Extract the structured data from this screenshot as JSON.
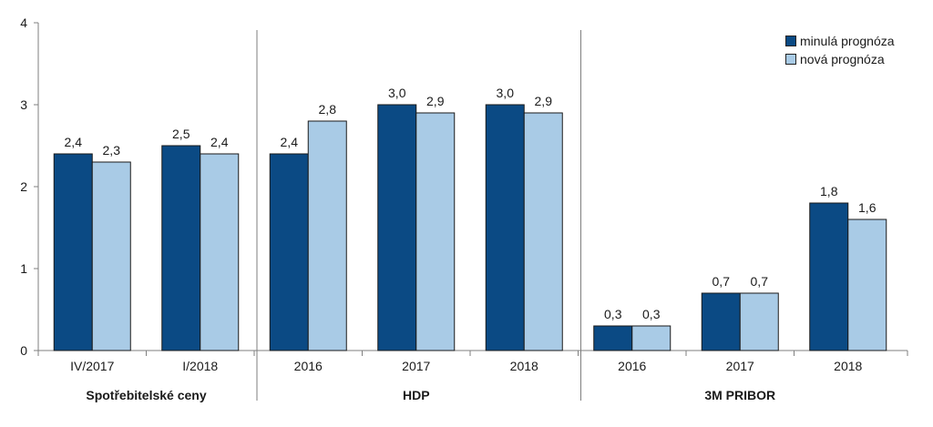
{
  "chart_data": {
    "type": "bar",
    "ylim": [
      0,
      4
    ],
    "yticks": [
      "0",
      "1",
      "2",
      "3",
      "4"
    ],
    "grid": false,
    "legend_position": "top-right",
    "colors": {
      "minula": "#0b4a84",
      "nova": "#a9cbe6"
    },
    "series": [
      {
        "name": "minulá prognóza"
      },
      {
        "name": "nová prognóza"
      }
    ],
    "groups": [
      {
        "label": "Spotřebitelské ceny",
        "categories": [
          {
            "label": "IV/2017",
            "values": [
              2.4,
              2.3
            ],
            "value_labels": [
              "2,4",
              "2,3"
            ]
          },
          {
            "label": "I/2018",
            "values": [
              2.5,
              2.4
            ],
            "value_labels": [
              "2,5",
              "2,4"
            ]
          }
        ]
      },
      {
        "label": "HDP",
        "categories": [
          {
            "label": "2016",
            "values": [
              2.4,
              2.8
            ],
            "value_labels": [
              "2,4",
              "2,8"
            ]
          },
          {
            "label": "2017",
            "values": [
              3.0,
              2.9
            ],
            "value_labels": [
              "3,0",
              "2,9"
            ]
          },
          {
            "label": "2018",
            "values": [
              3.0,
              2.9
            ],
            "value_labels": [
              "3,0",
              "2,9"
            ]
          }
        ]
      },
      {
        "label": "3M PRIBOR",
        "categories": [
          {
            "label": "2016",
            "values": [
              0.3,
              0.3
            ],
            "value_labels": [
              "0,3",
              "0,3"
            ]
          },
          {
            "label": "2017",
            "values": [
              0.7,
              0.7
            ],
            "value_labels": [
              "0,7",
              "0,7"
            ]
          },
          {
            "label": "2018",
            "values": [
              1.8,
              1.6
            ],
            "value_labels": [
              "1,8",
              "1,6"
            ]
          }
        ]
      }
    ]
  }
}
